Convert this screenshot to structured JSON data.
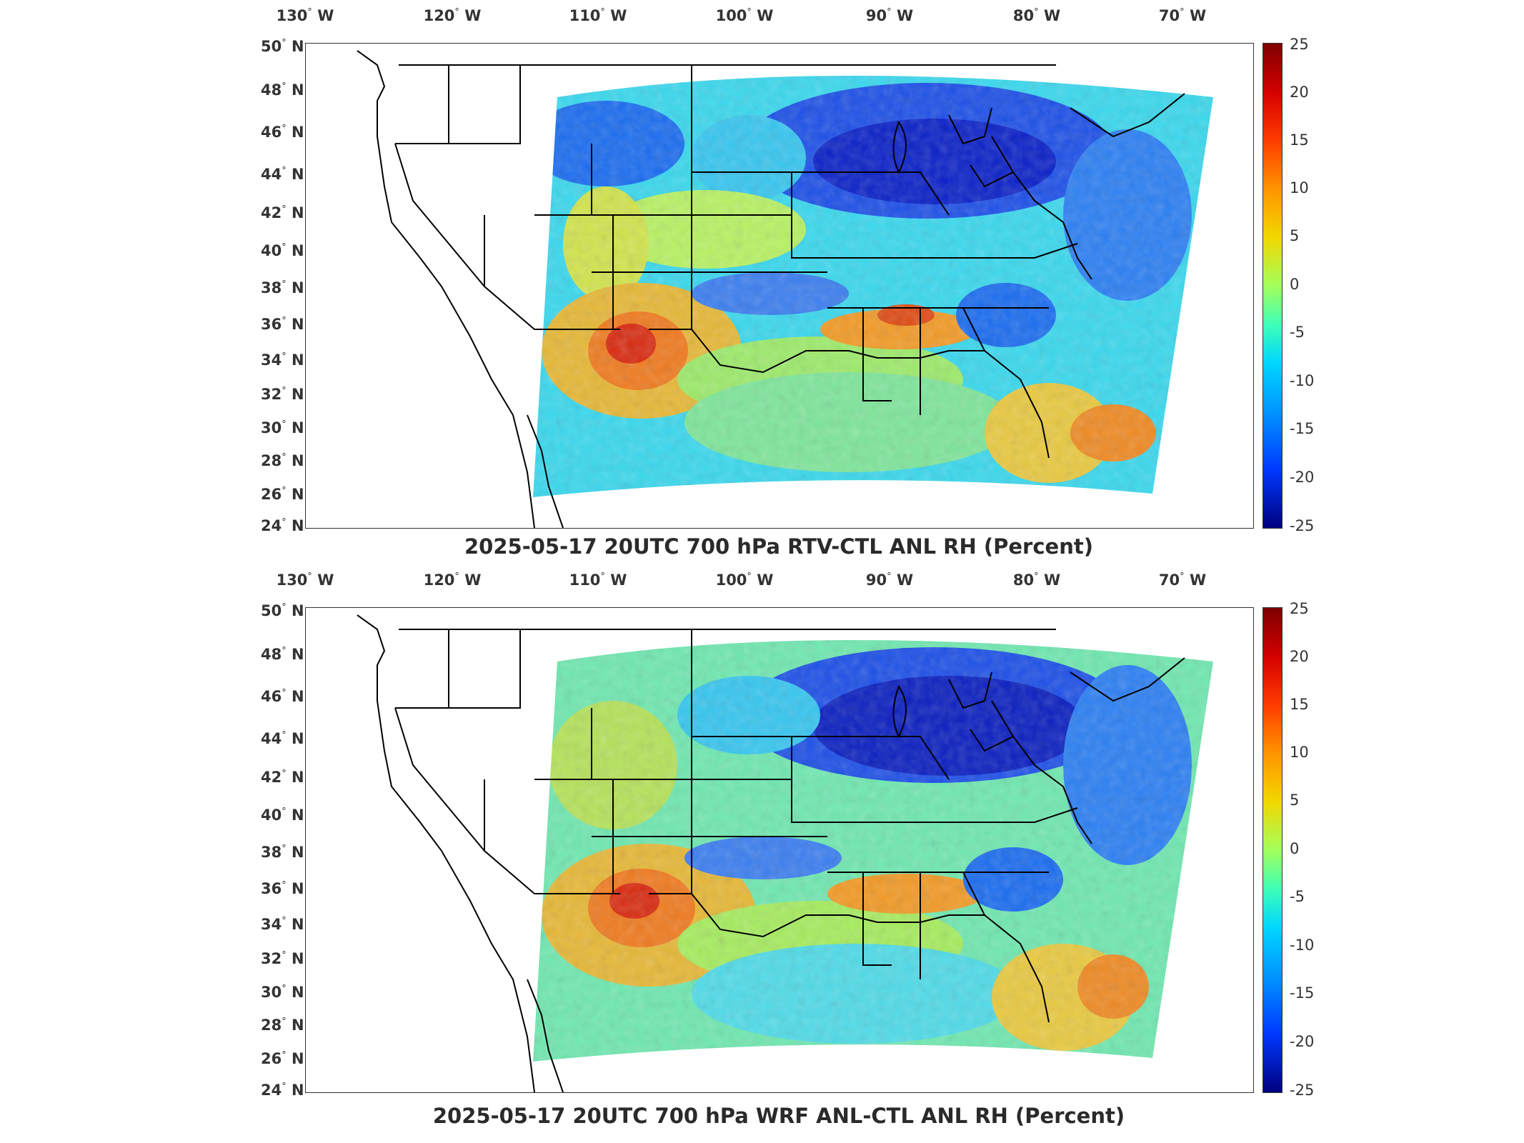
{
  "maps": [
    {
      "title": "2025-05-17 20UTC 700 hPa RTV-CTL ANL RH (Percent)",
      "lon_labels": [
        "130",
        "120",
        "110",
        "100",
        "90",
        "80",
        "70"
      ],
      "lon_suffix": "W",
      "lat_labels": [
        "50",
        "48",
        "46",
        "44",
        "42",
        "40",
        "38",
        "36",
        "34",
        "32",
        "30",
        "28",
        "26",
        "24"
      ],
      "lat_suffix": "N",
      "colorbar_ticks": [
        "25",
        "20",
        "15",
        "10",
        "5",
        "0",
        "-5",
        "-10",
        "-15",
        "-20",
        "-25"
      ]
    },
    {
      "title": "2025-05-17 20UTC 700 hPa WRF ANL-CTL ANL RH (Percent)",
      "lon_labels": [
        "130",
        "120",
        "110",
        "100",
        "90",
        "80",
        "70"
      ],
      "lon_suffix": "W",
      "lat_labels": [
        "50",
        "48",
        "46",
        "44",
        "42",
        "40",
        "38",
        "36",
        "34",
        "32",
        "30",
        "28",
        "26",
        "24"
      ],
      "lat_suffix": "N",
      "colorbar_ticks": [
        "25",
        "20",
        "15",
        "10",
        "5",
        "0",
        "-5",
        "-10",
        "-15",
        "-20",
        "-25"
      ]
    }
  ],
  "colors": {
    "deep_red": "#7f0000",
    "red": "#ff3b00",
    "orange": "#ff9400",
    "yellow": "#f2d700",
    "green": "#a3ff5b",
    "cyan": "#00d6ff",
    "blue": "#0095ff",
    "deep_blue": "#00007f"
  }
}
